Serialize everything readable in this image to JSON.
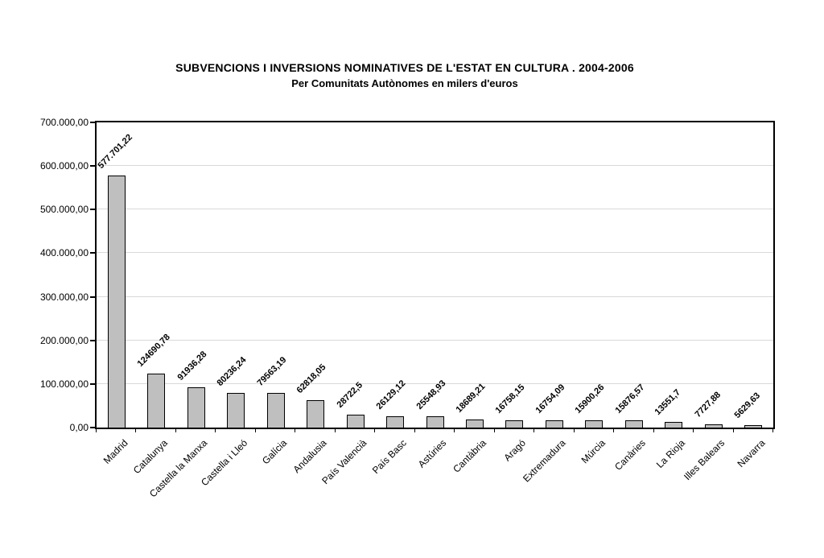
{
  "page": {
    "background": "#ffffff"
  },
  "chart_data": {
    "type": "bar",
    "title": "SUBVENCIONS I INVERSIONS NOMINATIVES DE L'ESTAT EN CULTURA . 2004-2006",
    "subtitle": "Per Comunitats Autònomes en milers d'euros",
    "unit": "milers d'euros",
    "categories": [
      "Madrid",
      "Catalunya",
      "Castella la Manxa",
      "Castella i Lleó",
      "Galícia",
      "Andalusia",
      "País Valencià",
      "País Basc",
      "Astúries",
      "Cantàbria",
      "Aragó",
      "Extremadura",
      "Múrcia",
      "Canàries",
      "La Rioja",
      "Illes Balears",
      "Navarra"
    ],
    "values": [
      577701.22,
      124690.78,
      91936.28,
      80236.24,
      79563.19,
      62818.05,
      28722.5,
      26129.12,
      25548.93,
      18689.21,
      16758.15,
      16754.09,
      15900.26,
      15876.57,
      13551.7,
      7727.88,
      5629.63
    ],
    "value_labels": [
      "577.701,22",
      "124690,78",
      "91936,28",
      "80236,24",
      "79563,19",
      "62818,05",
      "28722,5",
      "26129,12",
      "25548,93",
      "18689,21",
      "16758,15",
      "16754,09",
      "15900,26",
      "15876,57",
      "13551,7",
      "7727,88",
      "5629,63"
    ],
    "ylim": [
      0,
      700000
    ],
    "ytick_labels": [
      "0,00",
      "100.000,00",
      "200.000,00",
      "300.000,00",
      "400.000,00",
      "500.000,00",
      "600.000,00",
      "700.000,00"
    ],
    "ytick_values": [
      0,
      100000,
      200000,
      300000,
      400000,
      500000,
      600000,
      700000
    ],
    "grid": "horizontal",
    "legend": "none",
    "colors": {
      "bar_fill": "#bfbfbf",
      "bar_border": "#000000",
      "gridline": "#d9d9d9",
      "axis": "#000000",
      "text": "#000000",
      "background": "#ffffff"
    }
  }
}
